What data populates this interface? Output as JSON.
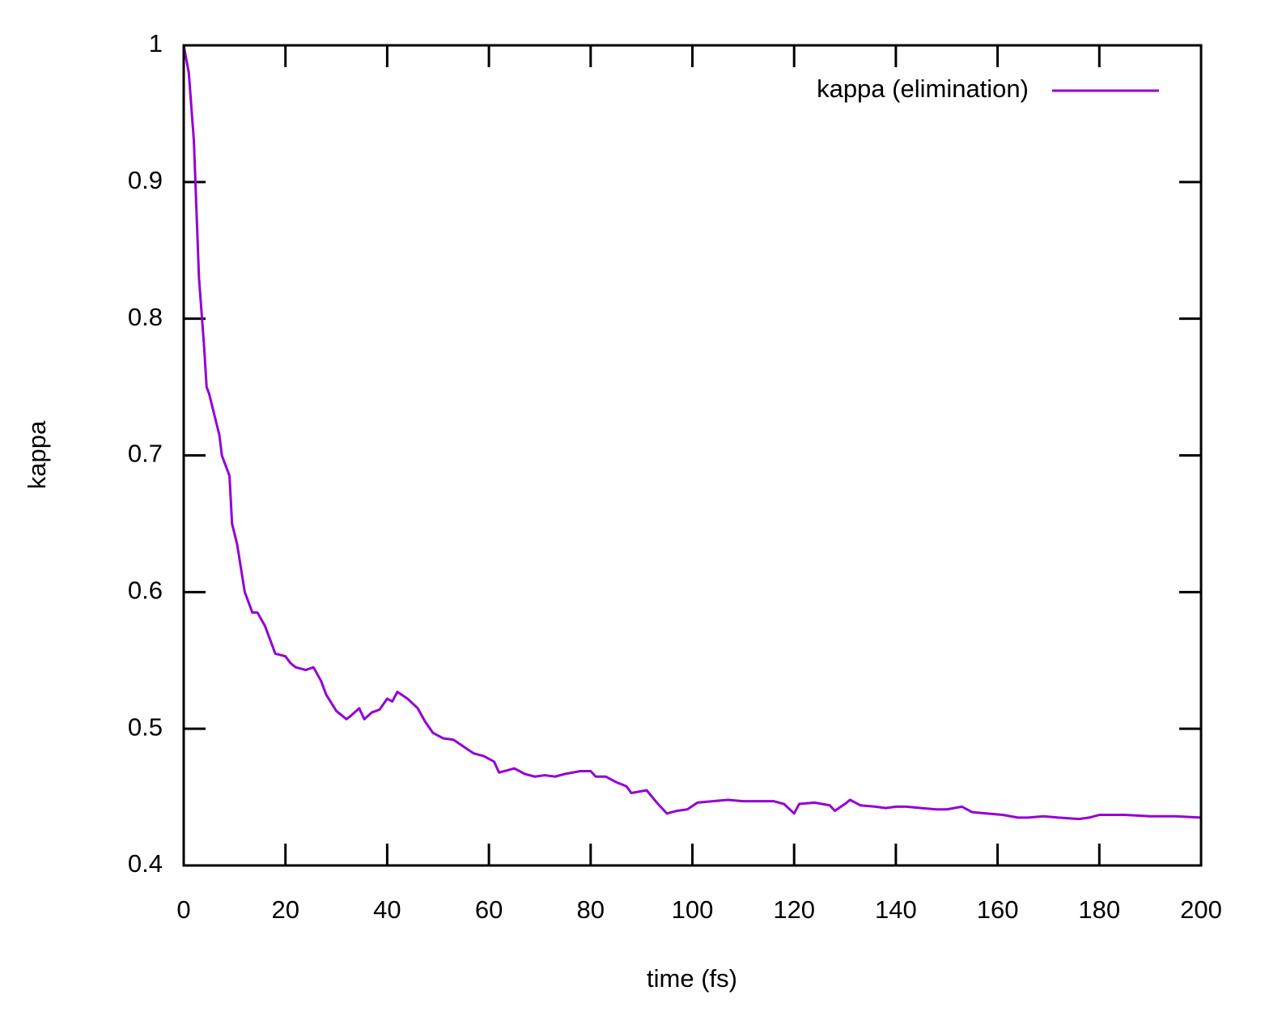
{
  "chart_data": {
    "type": "line",
    "xlabel": "time (fs)",
    "ylabel": "kappa",
    "x": [
      0,
      1,
      2,
      2.5,
      3,
      4,
      4.5,
      5,
      6,
      7,
      7.5,
      9,
      9.5,
      10.5,
      12,
      13.5,
      14.5,
      16,
      18,
      20,
      21,
      22,
      24,
      25.5,
      27,
      28,
      30,
      32,
      33,
      34.5,
      35.5,
      37,
      38.5,
      40,
      41,
      42,
      44,
      46,
      47.5,
      49,
      51,
      53,
      55,
      57,
      59,
      61,
      62,
      64,
      65,
      67,
      69,
      71,
      73,
      75,
      78,
      80,
      81,
      83,
      85,
      87,
      88,
      91,
      93,
      95,
      97,
      99,
      101,
      104,
      107,
      110,
      113,
      116,
      118,
      120,
      121,
      124,
      127,
      128,
      130,
      131,
      133,
      136,
      138,
      140,
      142,
      145,
      148,
      150,
      153,
      155,
      158,
      161,
      164,
      166,
      169,
      172,
      176,
      178,
      180,
      185,
      190,
      195,
      200
    ],
    "series": [
      {
        "name": "kappa (elimination)",
        "color": "#9400d3",
        "values": [
          1.0,
          0.98,
          0.93,
          0.88,
          0.83,
          0.78,
          0.75,
          0.745,
          0.73,
          0.715,
          0.7,
          0.685,
          0.65,
          0.635,
          0.6,
          0.585,
          0.585,
          0.575,
          0.555,
          0.553,
          0.548,
          0.545,
          0.543,
          0.545,
          0.535,
          0.525,
          0.513,
          0.507,
          0.51,
          0.515,
          0.507,
          0.512,
          0.514,
          0.522,
          0.52,
          0.527,
          0.522,
          0.515,
          0.505,
          0.497,
          0.493,
          0.492,
          0.487,
          0.482,
          0.48,
          0.476,
          0.468,
          0.47,
          0.471,
          0.467,
          0.465,
          0.466,
          0.465,
          0.467,
          0.469,
          0.469,
          0.465,
          0.465,
          0.461,
          0.458,
          0.453,
          0.455,
          0.446,
          0.438,
          0.44,
          0.441,
          0.446,
          0.447,
          0.448,
          0.447,
          0.447,
          0.447,
          0.445,
          0.438,
          0.445,
          0.446,
          0.444,
          0.44,
          0.445,
          0.448,
          0.444,
          0.443,
          0.442,
          0.443,
          0.443,
          0.442,
          0.441,
          0.441,
          0.443,
          0.439,
          0.438,
          0.437,
          0.435,
          0.435,
          0.436,
          0.435,
          0.434,
          0.435,
          0.437,
          0.437,
          0.436,
          0.436,
          0.435
        ]
      }
    ],
    "xlim": [
      0,
      200
    ],
    "ylim": [
      0.4,
      1
    ],
    "xticks": [
      0,
      20,
      40,
      60,
      80,
      100,
      120,
      140,
      160,
      180,
      200
    ],
    "yticks": [
      0.4,
      0.5,
      0.6,
      0.7,
      0.8,
      0.9,
      1
    ],
    "legend": "top-right",
    "grid": false
  }
}
